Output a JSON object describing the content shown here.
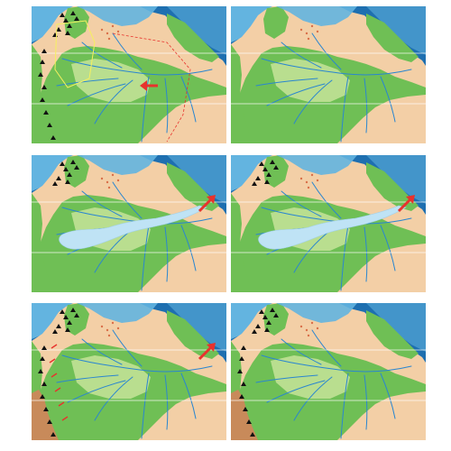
{
  "map_sequence": {
    "panel_count": 6,
    "colors": {
      "deep_ocean": "#1e6fb0",
      "shallow_sea": "#63b4e0",
      "lowland": "#f3cfa6",
      "forest": "#6fbf55",
      "forest_light": "#c7e39a",
      "andes": "#c88a5a",
      "river": "#2a86d0",
      "wetland": "#bfe3f5",
      "arrow": "#e8322d"
    },
    "panels": [
      {
        "id": "p1",
        "mountains": "north-and-west",
        "inland_sea": false,
        "arrow": "west-inflow",
        "outline": true
      },
      {
        "id": "p2",
        "mountains": "none",
        "inland_sea": false,
        "arrow": "none",
        "outline": false
      },
      {
        "id": "p3",
        "mountains": "north",
        "inland_sea": true,
        "arrow": "east-outflow",
        "outline": false
      },
      {
        "id": "p4",
        "mountains": "north",
        "inland_sea": true,
        "arrow": "east-outflow",
        "outline": false
      },
      {
        "id": "p5",
        "mountains": "andes-uplift",
        "inland_sea": false,
        "arrow": "east-outflow",
        "outline": false
      },
      {
        "id": "p6",
        "mountains": "andes",
        "inland_sea": false,
        "arrow": "none",
        "outline": false
      }
    ]
  }
}
